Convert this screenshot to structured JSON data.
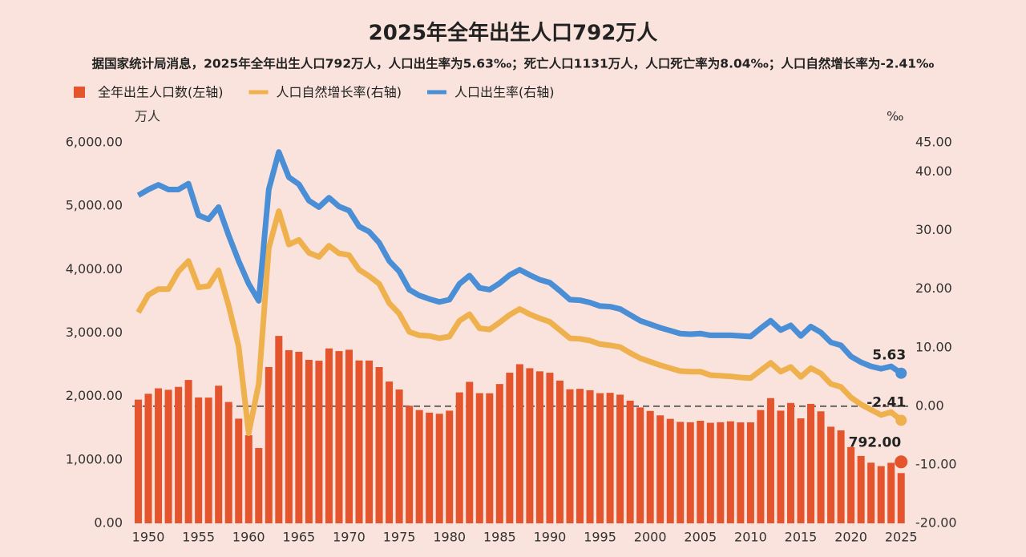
{
  "chart_data": {
    "type": "combo",
    "title": "2025年全年出生人口792万人",
    "subtitle": "据国家统计局消息，2025年全年出生人口792万人，人口出生率为5.63‰；死亡人口1131万人，人口死亡率为8.04‰；人口自然增长率为-2.41‰",
    "y_unit": "万人",
    "y2_unit": "‰",
    "x": [
      1949,
      1950,
      1951,
      1952,
      1953,
      1954,
      1955,
      1956,
      1957,
      1958,
      1959,
      1960,
      1961,
      1962,
      1963,
      1964,
      1965,
      1966,
      1967,
      1968,
      1969,
      1970,
      1971,
      1972,
      1973,
      1974,
      1975,
      1976,
      1977,
      1978,
      1979,
      1980,
      1981,
      1982,
      1983,
      1984,
      1985,
      1986,
      1987,
      1988,
      1989,
      1990,
      1991,
      1992,
      1993,
      1994,
      1995,
      1996,
      1997,
      1998,
      1999,
      2000,
      2001,
      2002,
      2003,
      2004,
      2005,
      2006,
      2007,
      2008,
      2009,
      2010,
      2011,
      2012,
      2013,
      2014,
      2015,
      2016,
      2017,
      2018,
      2019,
      2020,
      2021,
      2022,
      2023,
      2024,
      2025
    ],
    "xlim": [
      1948.4,
      2025.7
    ],
    "xticks": [
      1950,
      1955,
      1960,
      1965,
      1970,
      1975,
      1980,
      1985,
      1990,
      1995,
      2000,
      2005,
      2010,
      2015,
      2020,
      2025
    ],
    "ylim": [
      0,
      6000
    ],
    "yticks": [
      {
        "value": 0,
        "label": "0.00"
      },
      {
        "value": 1000,
        "label": "1,000.00"
      },
      {
        "value": 2000,
        "label": "2,000.00"
      },
      {
        "value": 3000,
        "label": "3,000.00"
      },
      {
        "value": 4000,
        "label": "4,000.00"
      },
      {
        "value": 5000,
        "label": "5,000.00"
      },
      {
        "value": 6000,
        "label": "6,000.00"
      }
    ],
    "y2lim": [
      -20,
      45
    ],
    "y2ticks": [
      {
        "value": -20,
        "label": "-20.00"
      },
      {
        "value": -10,
        "label": "-10.00"
      },
      {
        "value": 0,
        "label": "0.00"
      },
      {
        "value": 10,
        "label": "10.00"
      },
      {
        "value": 20,
        "label": "20.00"
      },
      {
        "value": 30,
        "label": "30.00"
      },
      {
        "value": 40,
        "label": "40.00"
      },
      {
        "value": 45,
        "label": "45.00"
      }
    ],
    "y2zero_line": true,
    "series": [
      {
        "name": "全年出生人口数(左轴)",
        "type": "bar",
        "color": "#e4552d",
        "end_label": "792.00",
        "values": [
          1950,
          2042,
          2128,
          2105,
          2151,
          2260,
          1984,
          1982,
          2169,
          1913,
          1650,
          1389,
          1188,
          2464,
          2954,
          2729,
          2704,
          2577,
          2563,
          2757,
          2715,
          2736,
          2567,
          2566,
          2463,
          2235,
          2109,
          1853,
          1786,
          1745,
          1727,
          1776,
          2064,
          2230,
          2052,
          2050,
          2196,
          2374,
          2508,
          2445,
          2396,
          2374,
          2250,
          2113,
          2120,
          2098,
          2052,
          2057,
          2028,
          1934,
          1827,
          1771,
          1702,
          1647,
          1599,
          1593,
          1617,
          1585,
          1594,
          1608,
          1591,
          1592,
          1786,
          1973,
          1776,
          1897,
          1655,
          1883,
          1765,
          1523,
          1465,
          1202,
          1062,
          956,
          902,
          954,
          792
        ]
      },
      {
        "name": "人口自然增长率(右轴)",
        "type": "line",
        "axis": "y2",
        "color": "#efb04e",
        "end_label": "-2.41",
        "values": [
          16,
          19,
          20,
          20,
          23,
          24.8,
          20.3,
          20.5,
          23.2,
          17.2,
          10.2,
          -4.6,
          3.8,
          27,
          33.3,
          27.6,
          28.4,
          26.2,
          25.5,
          27.4,
          26.1,
          25.8,
          23.3,
          22.2,
          20.9,
          17.6,
          15.8,
          12.7,
          12.1,
          12,
          11.6,
          11.9,
          14.6,
          15.7,
          13.3,
          13.1,
          14.3,
          15.6,
          16.6,
          15.7,
          15,
          14.4,
          13,
          11.6,
          11.5,
          11.2,
          10.6,
          10.4,
          10.1,
          9.1,
          8.2,
          7.6,
          7,
          6.5,
          6,
          5.9,
          5.9,
          5.3,
          5.2,
          5.1,
          4.9,
          4.8,
          6.1,
          7.4,
          5.9,
          6.7,
          5,
          6.5,
          5.6,
          3.8,
          3.3,
          1.5,
          0.3,
          -0.6,
          -1.5,
          -1,
          -2.41
        ]
      },
      {
        "name": "人口出生率(右轴)",
        "type": "line",
        "axis": "y2",
        "color": "#4a8ed6",
        "end_label": "5.63",
        "values": [
          36,
          37,
          37.8,
          37,
          37,
          38,
          32.6,
          31.9,
          34,
          29.2,
          24.8,
          20.9,
          18,
          37,
          43.4,
          39.1,
          37.9,
          35.1,
          34,
          35.6,
          34.1,
          33.4,
          30.7,
          29.8,
          27.9,
          24.8,
          23,
          19.9,
          18.9,
          18.3,
          17.8,
          18.2,
          20.9,
          22.3,
          20.2,
          19.9,
          21,
          22.4,
          23.3,
          22.4,
          21.6,
          21.1,
          19.7,
          18.2,
          18.1,
          17.7,
          17.1,
          17,
          16.6,
          15.6,
          14.6,
          14,
          13.4,
          12.9,
          12.4,
          12.3,
          12.4,
          12.1,
          12.1,
          12.1,
          12,
          11.9,
          13.3,
          14.6,
          13,
          13.8,
          12,
          13.6,
          12.6,
          10.9,
          10.4,
          8.5,
          7.5,
          6.8,
          6.4,
          6.8,
          5.63
        ]
      }
    ]
  }
}
